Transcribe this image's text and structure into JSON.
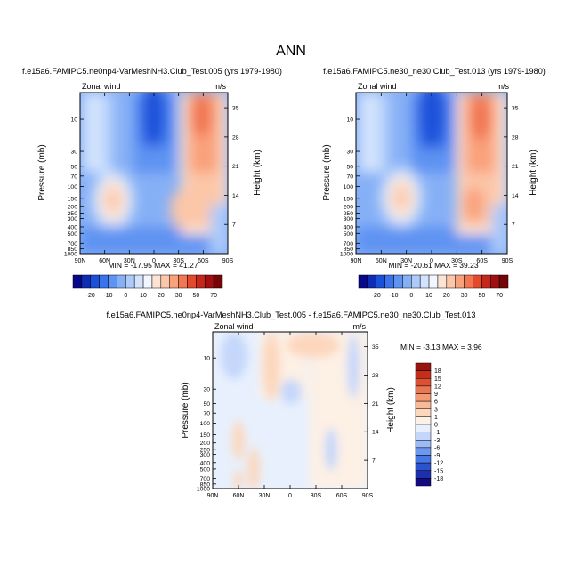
{
  "figure": {
    "title": "ANN"
  },
  "colors": {
    "full_palette": [
      "#08088c",
      "#0d2db5",
      "#1a51d9",
      "#3a74ed",
      "#5e93f2",
      "#86b0f6",
      "#adcafa",
      "#d2e3fd",
      "#f2f6ff",
      "#fde3d4",
      "#fcc6a8",
      "#f9a17b",
      "#f17651",
      "#e34a2d",
      "#c7271b",
      "#a00f12",
      "#750606"
    ],
    "diff_palette": [
      "#140a82",
      "#1e2fae",
      "#2d52cf",
      "#4577e6",
      "#6d98f1",
      "#9cbaf7",
      "#c4d7fb",
      "#e8f0fd",
      "#fdf0e5",
      "#fcd7bd",
      "#f9b996",
      "#f39a74",
      "#ea7653",
      "#dc5034",
      "#c52e1b",
      "#98150e"
    ]
  },
  "chart_data": [
    {
      "type": "heatmap",
      "title": "f.e15a6.FAMIPC5.ne0np4-VarMeshNH3.Club_Test.005 (yrs 1979-1980)",
      "left_label": "Zonal wind",
      "right_label": "m/s",
      "xlabel": "",
      "ylabel": "Pressure (mb)",
      "y2label": "Height (km)",
      "xticks": [
        "90N",
        "60N",
        "30N",
        "0",
        "30S",
        "60S",
        "90S"
      ],
      "yticks": [
        "10",
        "30",
        "50",
        "70",
        "100",
        "150",
        "200",
        "250",
        "300",
        "400",
        "500",
        "700",
        "850",
        "1000"
      ],
      "y2ticks": [
        "35",
        "28",
        "21",
        "14",
        "7"
      ],
      "min_max_text": "MIN = -17.95   MAX = 41.27",
      "colorbar": {
        "orientation": "horizontal",
        "labels": [
          "-20",
          "-10",
          "0",
          "10",
          "20",
          "30",
          "50",
          "70"
        ]
      }
    },
    {
      "type": "heatmap",
      "title": "f.e15a6.FAMIPC5.ne30_ne30.Club_Test.013 (yrs 1979-1980)",
      "left_label": "Zonal wind",
      "right_label": "m/s",
      "xlabel": "",
      "ylabel": "Pressure (mb)",
      "y2label": "Height (km)",
      "xticks": [
        "90N",
        "60N",
        "30N",
        "0",
        "30S",
        "60S",
        "90S"
      ],
      "yticks": [
        "10",
        "30",
        "50",
        "70",
        "100",
        "150",
        "200",
        "250",
        "300",
        "400",
        "500",
        "700",
        "850",
        "1000"
      ],
      "y2ticks": [
        "35",
        "28",
        "21",
        "14",
        "7"
      ],
      "min_max_text": "MIN = -20.61   MAX = 39.23",
      "colorbar": {
        "orientation": "horizontal",
        "labels": [
          "-20",
          "-10",
          "0",
          "10",
          "20",
          "30",
          "50",
          "70"
        ]
      }
    },
    {
      "type": "heatmap",
      "title": "f.e15a6.FAMIPC5.ne0np4-VarMeshNH3.Club_Test.005 - f.e15a6.FAMIPC5.ne30_ne30.Club_Test.013",
      "left_label": "Zonal wind",
      "right_label": "m/s",
      "xlabel": "",
      "ylabel": "Pressure (mb)",
      "y2label": "Height (km)",
      "xticks": [
        "90N",
        "60N",
        "30N",
        "0",
        "30S",
        "60S",
        "90S"
      ],
      "yticks": [
        "10",
        "30",
        "50",
        "70",
        "100",
        "150",
        "200",
        "250",
        "300",
        "400",
        "500",
        "700",
        "850",
        "1000"
      ],
      "y2ticks": [
        "35",
        "28",
        "21",
        "14",
        "7"
      ],
      "min_max_text": "MIN =  -3.13   MAX =   3.96",
      "colorbar": {
        "orientation": "vertical",
        "labels": [
          "18",
          "15",
          "12",
          "9",
          "6",
          "3",
          "1",
          "0",
          "-1",
          "-3",
          "-6",
          "-9",
          "-12",
          "-15",
          "-18"
        ]
      }
    }
  ]
}
